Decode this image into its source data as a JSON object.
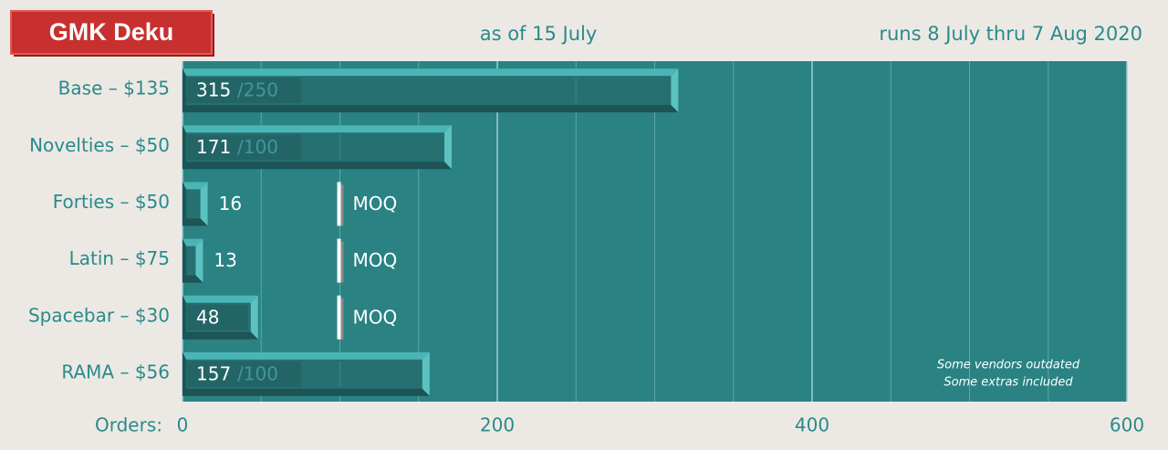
{
  "chart_data": {
    "type": "bar",
    "orientation": "horizontal",
    "title": "GMK Deku",
    "subtitle": "as of 15 July",
    "note": "runs 8 July thru 7 Aug 2020",
    "annotation": [
      "Some vendors outdated",
      "Some extras included"
    ],
    "x_label": "Orders:",
    "categories": [
      "Base – $135",
      "Novelties – $50",
      "Forties – $50",
      "Latin – $75",
      "Spacebar – $30",
      "RAMA – $56"
    ],
    "series": [
      {
        "name": "Orders",
        "color": "#267072",
        "values": [
          315,
          171,
          16,
          13,
          48,
          157
        ]
      },
      {
        "name": "MOQ",
        "color": "#ffffff",
        "values": [
          250,
          100,
          100,
          100,
          100,
          100
        ],
        "value_labels": [
          "/250",
          "/100",
          "MOQ",
          "MOQ",
          "MOQ",
          "/100"
        ]
      }
    ],
    "xlim": [
      0,
      600
    ],
    "xticks": [
      0,
      200,
      400,
      600
    ],
    "xminor_ticks": [
      50,
      100,
      150,
      250,
      300,
      350,
      450,
      500,
      550
    ],
    "grid": true
  }
}
